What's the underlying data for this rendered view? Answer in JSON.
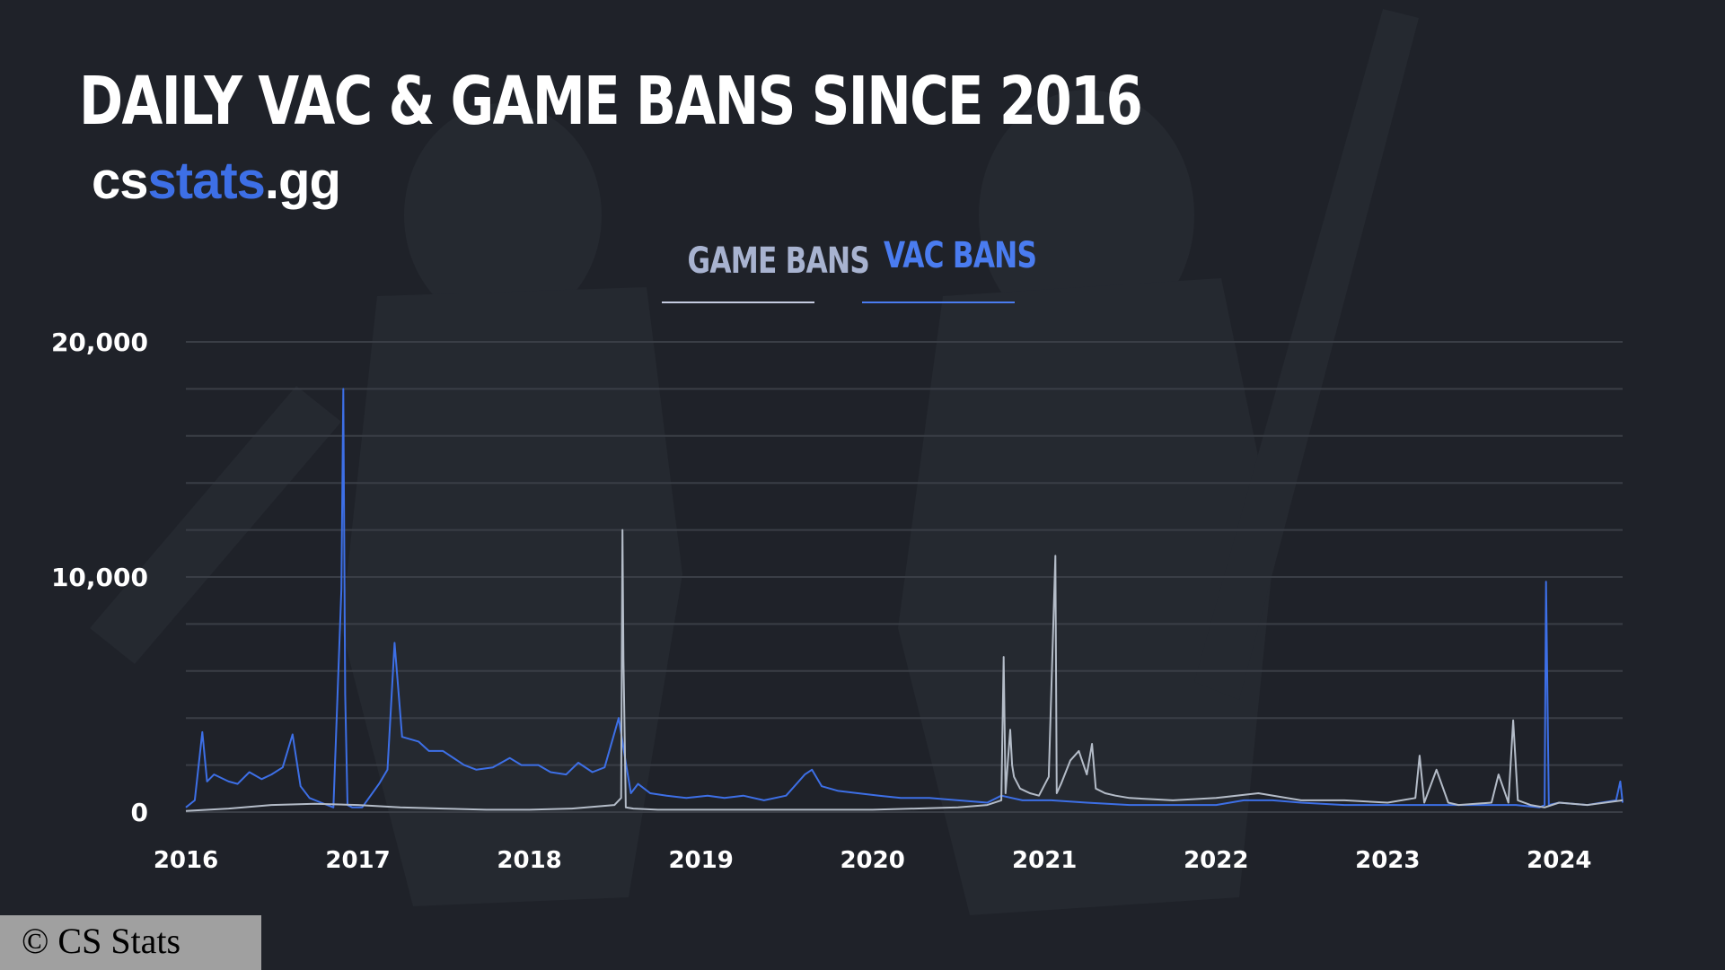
{
  "header": {
    "title": "DAILY VAC & GAME BANS SINCE 2016",
    "brand_prefix": "cs",
    "brand_accent": "stats",
    "brand_suffix": ".gg"
  },
  "tabs": [
    {
      "label": "GAME BANS",
      "active": false
    },
    {
      "label": "VAC BANS",
      "active": true
    }
  ],
  "copyright": "© CS Stats",
  "colors": {
    "background": "#1f2229",
    "vac": "#3d6fe6",
    "game": "#b4bcc8",
    "accent": "#3d6fe6"
  },
  "chart_data": {
    "type": "line",
    "title": "DAILY VAC & GAME BANS SINCE 2016",
    "x_ticks": [
      "2016",
      "2017",
      "2018",
      "2019",
      "2020",
      "2021",
      "2022",
      "2023",
      "2024"
    ],
    "y_ticks": [
      "20,000",
      "10,000",
      "0"
    ],
    "ylim": [
      0,
      20000
    ],
    "xlim": [
      "2016-01-01",
      "2024-05-15"
    ],
    "grid": true,
    "series": [
      {
        "name": "VAC BANS",
        "color": "#3d6fe6",
        "x": [
          "2016-01-01",
          "2016-01-20",
          "2016-02-05",
          "2016-02-15",
          "2016-03-01",
          "2016-04-01",
          "2016-04-20",
          "2016-05-15",
          "2016-06-10",
          "2016-07-01",
          "2016-07-25",
          "2016-08-15",
          "2016-09-01",
          "2016-09-20",
          "2016-10-15",
          "2016-11-10",
          "2016-11-27",
          "2016-12-01",
          "2016-12-05",
          "2016-12-10",
          "2016-12-20",
          "2017-01-10",
          "2017-02-15",
          "2017-03-05",
          "2017-03-20",
          "2017-04-05",
          "2017-05-10",
          "2017-06-01",
          "2017-07-01",
          "2017-08-15",
          "2017-09-10",
          "2017-10-15",
          "2017-11-20",
          "2017-12-15",
          "2018-01-20",
          "2018-02-15",
          "2018-03-20",
          "2018-04-15",
          "2018-05-15",
          "2018-06-10",
          "2018-07-10",
          "2018-07-25",
          "2018-08-05",
          "2018-08-20",
          "2018-09-15",
          "2018-10-20",
          "2018-12-01",
          "2019-01-15",
          "2019-02-20",
          "2019-04-01",
          "2019-05-15",
          "2019-07-01",
          "2019-08-10",
          "2019-08-25",
          "2019-09-15",
          "2019-10-20",
          "2019-12-01",
          "2020-01-15",
          "2020-03-01",
          "2020-05-01",
          "2020-07-01",
          "2020-09-01",
          "2020-10-01",
          "2020-11-15",
          "2021-01-15",
          "2021-04-01",
          "2021-07-01",
          "2021-10-01",
          "2022-01-01",
          "2022-03-01",
          "2022-05-01",
          "2022-07-01",
          "2022-10-01",
          "2023-01-01",
          "2023-04-01",
          "2023-07-01",
          "2023-10-01",
          "2023-11-20",
          "2023-12-01",
          "2023-12-04",
          "2023-12-10",
          "2024-01-01",
          "2024-03-01",
          "2024-05-01",
          "2024-05-10",
          "2024-05-15"
        ],
        "values": [
          200,
          500,
          3400,
          1300,
          1600,
          1300,
          1200,
          1700,
          1400,
          1600,
          1900,
          3300,
          1100,
          600,
          400,
          200,
          9500,
          18000,
          5000,
          300,
          200,
          200,
          1200,
          1800,
          7200,
          3200,
          3000,
          2600,
          2600,
          2000,
          1800,
          1900,
          2300,
          2000,
          2000,
          1700,
          1600,
          2100,
          1700,
          1900,
          4000,
          2100,
          800,
          1200,
          800,
          700,
          600,
          700,
          600,
          700,
          500,
          700,
          1600,
          1800,
          1100,
          900,
          800,
          700,
          600,
          600,
          500,
          400,
          700,
          500,
          500,
          400,
          300,
          300,
          300,
          500,
          500,
          400,
          300,
          300,
          300,
          300,
          300,
          200,
          300,
          9800,
          300,
          400,
          300,
          500,
          1300,
          400
        ]
      },
      {
        "name": "GAME BANS",
        "color": "#b4bcc8",
        "x": [
          "2016-01-01",
          "2016-04-01",
          "2016-07-01",
          "2016-10-01",
          "2017-01-01",
          "2017-04-01",
          "2017-07-01",
          "2017-10-01",
          "2018-01-01",
          "2018-04-01",
          "2018-07-01",
          "2018-07-15",
          "2018-07-18",
          "2018-07-20",
          "2018-07-25",
          "2018-08-10",
          "2018-10-01",
          "2019-01-01",
          "2019-04-01",
          "2019-07-01",
          "2019-10-01",
          "2020-01-01",
          "2020-04-01",
          "2020-07-01",
          "2020-09-01",
          "2020-10-01",
          "2020-10-06",
          "2020-10-10",
          "2020-10-20",
          "2020-10-24",
          "2020-10-28",
          "2020-11-10",
          "2020-12-01",
          "2020-12-20",
          "2021-01-10",
          "2021-01-24",
          "2021-01-27",
          "2021-02-05",
          "2021-02-25",
          "2021-03-15",
          "2021-04-01",
          "2021-04-12",
          "2021-04-20",
          "2021-05-10",
          "2021-06-01",
          "2021-07-01",
          "2021-10-01",
          "2022-01-01",
          "2022-04-01",
          "2022-07-01",
          "2022-10-01",
          "2023-01-01",
          "2023-03-01",
          "2023-03-10",
          "2023-03-20",
          "2023-04-15",
          "2023-05-10",
          "2023-06-01",
          "2023-08-10",
          "2023-08-25",
          "2023-09-15",
          "2023-09-25",
          "2023-10-05",
          "2023-11-01",
          "2023-12-01",
          "2024-01-01",
          "2024-03-01",
          "2024-05-15"
        ],
        "values": [
          50,
          150,
          300,
          350,
          300,
          200,
          150,
          100,
          100,
          150,
          300,
          600,
          12000,
          6500,
          200,
          150,
          100,
          100,
          100,
          100,
          100,
          100,
          150,
          200,
          300,
          500,
          6600,
          800,
          3500,
          2000,
          1500,
          1000,
          800,
          700,
          1500,
          10900,
          800,
          1200,
          2200,
          2600,
          1600,
          2900,
          1000,
          800,
          700,
          600,
          500,
          600,
          800,
          500,
          500,
          400,
          600,
          2400,
          400,
          1800,
          400,
          300,
          400,
          1600,
          400,
          3900,
          500,
          300,
          200,
          400,
          300,
          500
        ]
      }
    ]
  }
}
